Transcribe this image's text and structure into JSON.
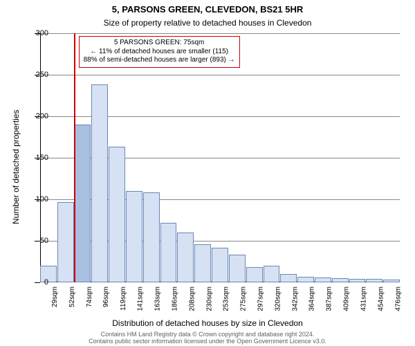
{
  "title": "5, PARSONS GREEN, CLEVEDON, BS21 5HR",
  "subtitle": "Size of property relative to detached houses in Clevedon",
  "chart": {
    "type": "histogram",
    "background_color": "#ffffff",
    "grid_color": "#888888",
    "axis_color": "#000000",
    "bar_fill": "#d6e2f3",
    "bar_border": "#6a85b6",
    "bar_border_width": 1,
    "highlight_fill": "#aac0e3",
    "marker_color": "#cc0000",
    "marker_width": 2,
    "marker_at_index": 2,
    "y": {
      "min": 0,
      "max": 300,
      "ticks": [
        0,
        50,
        100,
        150,
        200,
        250,
        300
      ],
      "label": "Number of detached properties",
      "label_fontsize": 12,
      "tick_fontsize": 11
    },
    "x": {
      "labels": [
        "29sqm",
        "52sqm",
        "74sqm",
        "96sqm",
        "119sqm",
        "141sqm",
        "163sqm",
        "186sqm",
        "208sqm",
        "230sqm",
        "253sqm",
        "275sqm",
        "297sqm",
        "320sqm",
        "342sqm",
        "364sqm",
        "387sqm",
        "409sqm",
        "431sqm",
        "454sqm",
        "476sqm"
      ],
      "label": "Distribution of detached houses by size in Clevedon",
      "label_fontsize": 12,
      "tick_fontsize": 10
    },
    "values": [
      20,
      97,
      190,
      238,
      163,
      110,
      108,
      72,
      60,
      46,
      42,
      33,
      18,
      20,
      10,
      7,
      6,
      5,
      4,
      4,
      3
    ],
    "title_fontsize": 13,
    "subtitle_fontsize": 12
  },
  "annotation": {
    "line1": "5 PARSONS GREEN: 75sqm",
    "line2": "← 11% of detached houses are smaller (115)",
    "line3": "88% of semi-detached houses are larger (893) →",
    "fontsize": 10,
    "border_color": "#cc0000",
    "border_width": 1,
    "background": "#ffffff"
  },
  "copyright": {
    "line1": "Contains HM Land Registry data © Crown copyright and database right 2024.",
    "line2": "Contains public sector information licensed under the Open Government Licence v3.0.",
    "fontsize": 9,
    "color": "#606060"
  }
}
